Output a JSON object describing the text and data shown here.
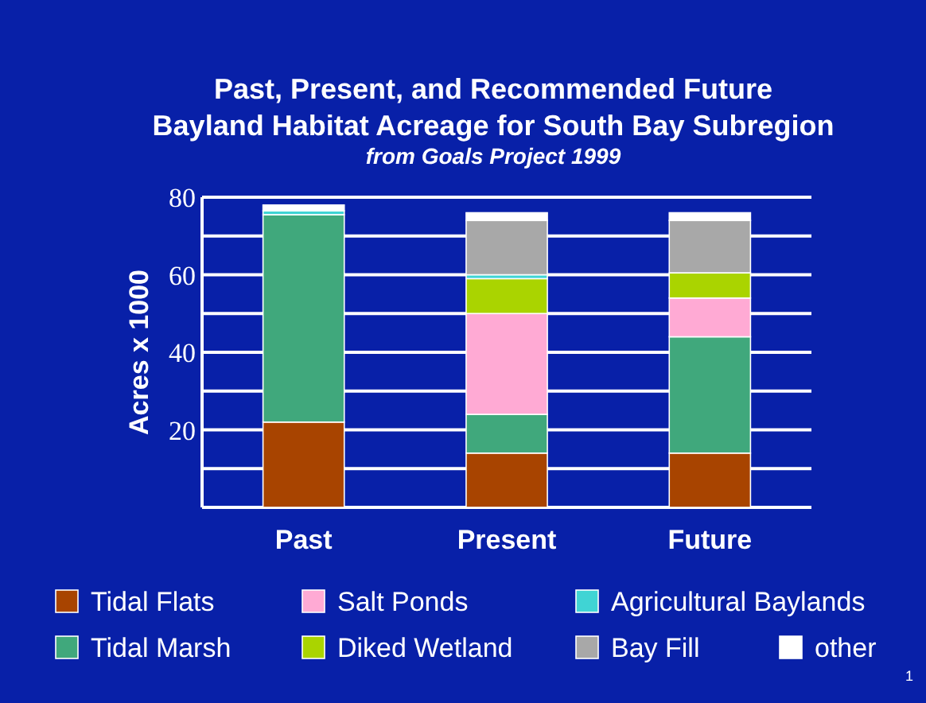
{
  "chart_data": {
    "type": "bar",
    "title": "Past, Present, and Recommended Future\nBayland Habitat Acreage for South Bay Subregion",
    "subtitle": "from Goals Project 1999",
    "ylabel": "Acres x 1000",
    "categories": [
      "Past",
      "Present",
      "Future"
    ],
    "stacked": true,
    "series": [
      {
        "name": "Tidal Flats",
        "color": "#a84400",
        "values": [
          22,
          14,
          14
        ]
      },
      {
        "name": "Tidal Marsh",
        "color": "#40a87c",
        "values": [
          53.5,
          10,
          30
        ]
      },
      {
        "name": "Salt Ponds",
        "color": "#ffaad4",
        "values": [
          0,
          26,
          10
        ]
      },
      {
        "name": "Diked Wetland",
        "color": "#aad400",
        "values": [
          0,
          9,
          6.5
        ]
      },
      {
        "name": "Agricultural Baylands",
        "color": "#40d4d4",
        "values": [
          1,
          1,
          0
        ]
      },
      {
        "name": "Bay Fill",
        "color": "#a8a8a8",
        "values": [
          0,
          14,
          13.5
        ]
      },
      {
        "name": "other",
        "color": "#ffffff",
        "values": [
          1.5,
          2,
          2
        ]
      }
    ],
    "ylim": [
      0,
      80
    ],
    "yticks": [
      {
        "value": 0,
        "label": null
      },
      {
        "value": 10,
        "label": null
      },
      20,
      {
        "value": 30,
        "label": null
      },
      40,
      {
        "value": 50,
        "label": null
      },
      60,
      {
        "value": 70,
        "label": null
      },
      80
    ],
    "grid": "y",
    "legend": "bottom",
    "annotations": [
      "1"
    ]
  }
}
